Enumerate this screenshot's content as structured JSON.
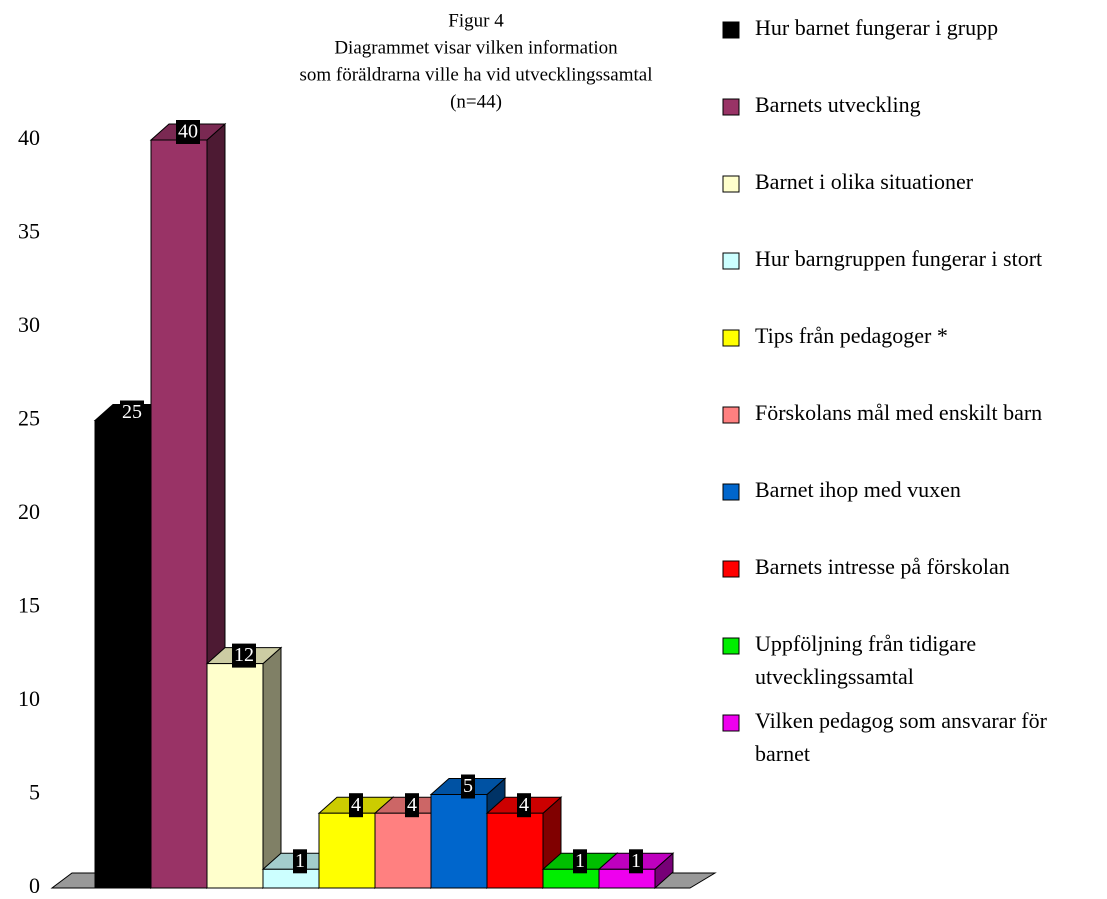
{
  "chart_data": {
    "type": "bar3d",
    "title": [
      "Figur 4",
      "Diagrammet visar vilken information",
      "som föräldrarna ville ha vid utvecklingssamtal",
      "(n=44)"
    ],
    "ylim": [
      0,
      40
    ],
    "yticks": [
      0,
      5,
      10,
      15,
      20,
      25,
      30,
      35,
      40
    ],
    "grid": false,
    "legend": "right",
    "series": [
      {
        "name": "Hur barnet fungerar i grupp",
        "color": "#000000",
        "values": [
          25
        ]
      },
      {
        "name": "Barnets utveckling",
        "color": "#993366",
        "values": [
          40
        ]
      },
      {
        "name": "Barnet i olika situationer",
        "color": "#ffffcc",
        "values": [
          12
        ]
      },
      {
        "name": "Hur barngruppen fungerar i stort",
        "color": "#ccffff",
        "values": [
          1
        ]
      },
      {
        "name": "Tips från pedagoger *",
        "color": "#ffff00",
        "values": [
          4
        ]
      },
      {
        "name": "Förskolans mål med enskilt barn",
        "color": "#ff8080",
        "values": [
          4
        ]
      },
      {
        "name": "Barnet ihop med vuxen",
        "color": "#0066cc",
        "values": [
          5
        ]
      },
      {
        "name": "Barnets intresse på förskolan",
        "color": "#ff0000",
        "values": [
          4
        ]
      },
      {
        "name": "Uppföljning från tidigare utvecklingssamtal",
        "color": "#00ee00",
        "values": [
          1
        ]
      },
      {
        "name": "Vilken pedagog som ansvarar för barnet",
        "color": "#ee00ee",
        "values": [
          1
        ]
      }
    ]
  }
}
